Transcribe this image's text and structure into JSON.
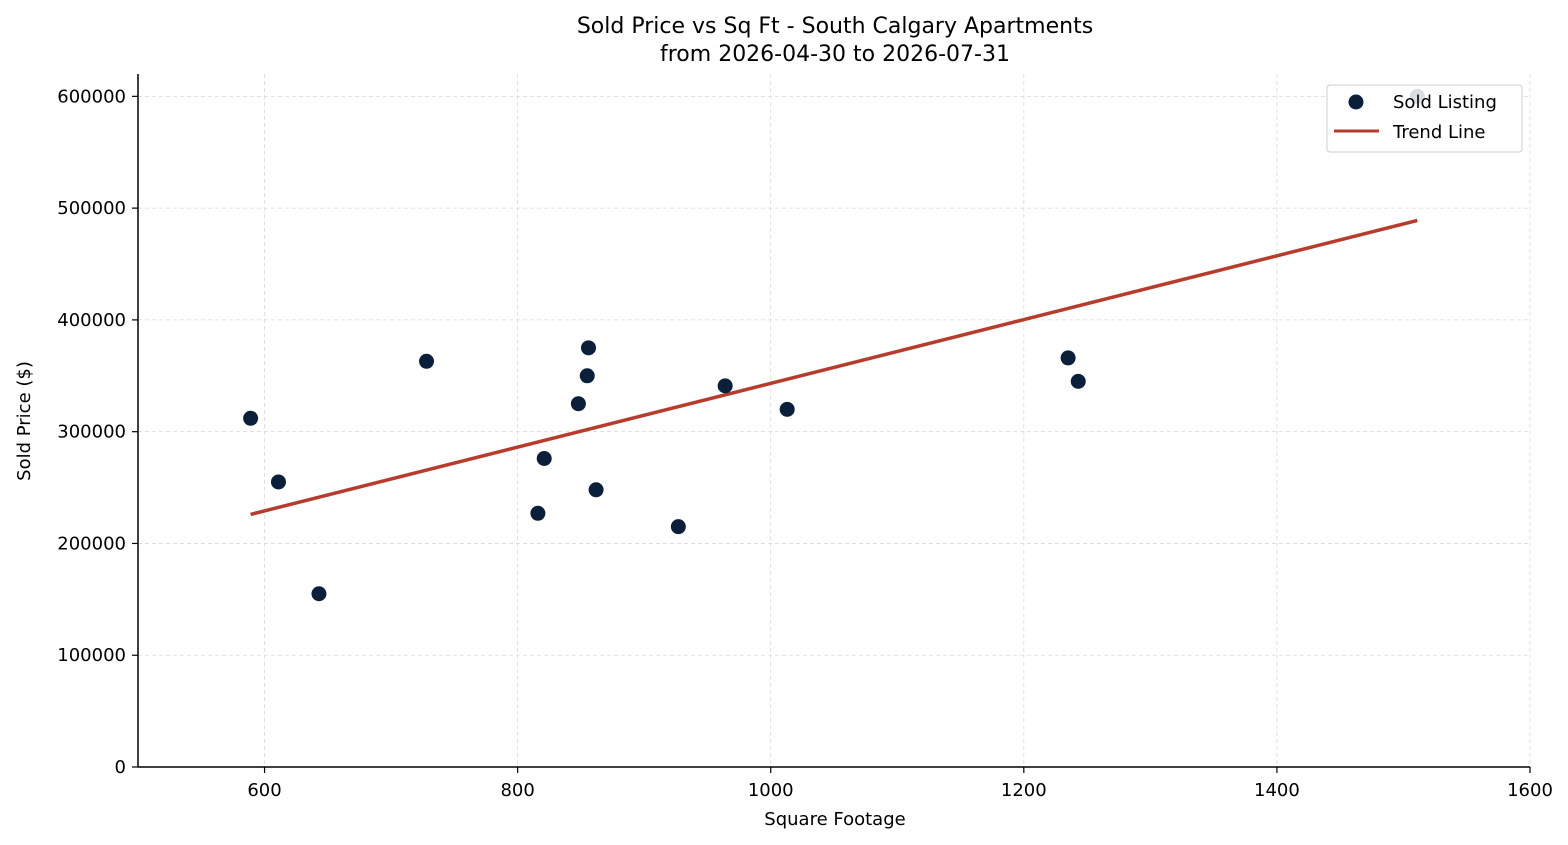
{
  "chart_data": {
    "type": "scatter",
    "title_line1": "Sold Price vs Sq Ft - South Calgary Apartments",
    "title_line2": "from 2026-04-30 to 2026-07-31",
    "xlabel": "Square Footage",
    "ylabel": "Sold Price ($)",
    "xlim": [
      500,
      1600
    ],
    "ylim": [
      0,
      620000
    ],
    "xticks": [
      600,
      800,
      1000,
      1200,
      1400,
      1600
    ],
    "yticks": [
      0,
      100000,
      200000,
      300000,
      400000,
      500000,
      600000
    ],
    "grid": true,
    "legend_position": "top-right",
    "colors": {
      "points": "#0b1f3a",
      "trend": "#b63d2d",
      "grid": "#d9d9d9"
    },
    "series": [
      {
        "name": "Sold Listing",
        "kind": "scatter",
        "points": [
          {
            "x": 589,
            "y": 312000
          },
          {
            "x": 611,
            "y": 255000
          },
          {
            "x": 643,
            "y": 155000
          },
          {
            "x": 728,
            "y": 363000
          },
          {
            "x": 816,
            "y": 227000
          },
          {
            "x": 821,
            "y": 276000
          },
          {
            "x": 848,
            "y": 325000
          },
          {
            "x": 855,
            "y": 350000
          },
          {
            "x": 856,
            "y": 375000
          },
          {
            "x": 862,
            "y": 248000
          },
          {
            "x": 927,
            "y": 215000
          },
          {
            "x": 964,
            "y": 341000
          },
          {
            "x": 1013,
            "y": 320000
          },
          {
            "x": 1235,
            "y": 366000
          },
          {
            "x": 1243,
            "y": 345000
          },
          {
            "x": 1511,
            "y": 600000
          }
        ]
      },
      {
        "name": "Trend Line",
        "kind": "line",
        "points": [
          {
            "x": 589,
            "y": 226000
          },
          {
            "x": 1511,
            "y": 489000
          }
        ]
      }
    ]
  }
}
